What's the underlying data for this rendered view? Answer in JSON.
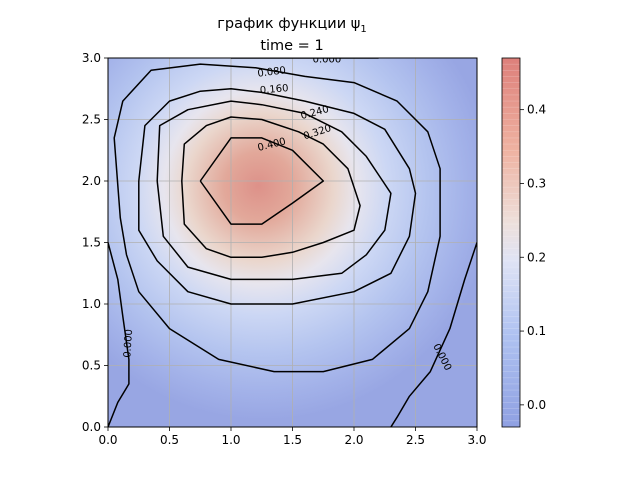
{
  "chart_data": {
    "type": "heatmap",
    "title_line1": "график функции ψ",
    "title_subscript": "1",
    "title_line2": "time = 1",
    "xlabel": "",
    "ylabel": "",
    "xlim": [
      0,
      3
    ],
    "ylim": [
      0,
      3
    ],
    "x_ticks": [
      "0.0",
      "0.5",
      "1.0",
      "1.5",
      "2.0",
      "2.5",
      "3.0"
    ],
    "y_ticks": [
      "0.0",
      "0.5",
      "1.0",
      "1.5",
      "2.0",
      "2.5",
      "3.0"
    ],
    "grid": true,
    "colormap": "coolwarm",
    "colorbar": {
      "range": [
        -0.03,
        0.47
      ],
      "ticks": [
        "0.0",
        "0.1",
        "0.2",
        "0.3",
        "0.4"
      ]
    },
    "field_peak": {
      "x": 1.25,
      "y": 1.9,
      "value": 0.47
    },
    "contour_levels": [
      "0.000",
      "0.080",
      "0.160",
      "0.240",
      "0.320",
      "0.400"
    ],
    "contours": [
      {
        "level": "0.400",
        "points": [
          [
            0.75,
            2.0
          ],
          [
            1.0,
            2.35
          ],
          [
            1.25,
            2.35
          ],
          [
            1.5,
            2.25
          ],
          [
            1.75,
            2.0
          ],
          [
            1.5,
            1.82
          ],
          [
            1.25,
            1.65
          ],
          [
            1.0,
            1.65
          ],
          [
            0.75,
            2.0
          ]
        ]
      },
      {
        "level": "0.320",
        "points": [
          [
            0.6,
            2.0
          ],
          [
            0.62,
            2.3
          ],
          [
            0.8,
            2.45
          ],
          [
            1.0,
            2.52
          ],
          [
            1.25,
            2.5
          ],
          [
            1.55,
            2.4
          ],
          [
            1.75,
            2.3
          ],
          [
            1.95,
            2.1
          ],
          [
            2.05,
            1.8
          ],
          [
            2.0,
            1.6
          ],
          [
            1.75,
            1.5
          ],
          [
            1.5,
            1.42
          ],
          [
            1.25,
            1.38
          ],
          [
            1.0,
            1.38
          ],
          [
            0.8,
            1.45
          ],
          [
            0.62,
            1.65
          ],
          [
            0.6,
            2.0
          ]
        ]
      },
      {
        "level": "0.240",
        "points": [
          [
            0.4,
            2.0
          ],
          [
            0.42,
            2.45
          ],
          [
            0.65,
            2.58
          ],
          [
            1.0,
            2.65
          ],
          [
            1.25,
            2.62
          ],
          [
            1.6,
            2.55
          ],
          [
            1.9,
            2.4
          ],
          [
            2.1,
            2.2
          ],
          [
            2.3,
            1.9
          ],
          [
            2.25,
            1.6
          ],
          [
            2.1,
            1.4
          ],
          [
            1.9,
            1.25
          ],
          [
            1.5,
            1.2
          ],
          [
            1.0,
            1.2
          ],
          [
            0.65,
            1.3
          ],
          [
            0.45,
            1.55
          ],
          [
            0.4,
            2.0
          ]
        ]
      },
      {
        "level": "0.160",
        "points": [
          [
            0.25,
            2.0
          ],
          [
            0.3,
            2.45
          ],
          [
            0.5,
            2.65
          ],
          [
            0.75,
            2.73
          ],
          [
            1.0,
            2.75
          ],
          [
            1.25,
            2.72
          ],
          [
            1.6,
            2.65
          ],
          [
            2.0,
            2.55
          ],
          [
            2.25,
            2.42
          ],
          [
            2.45,
            2.1
          ],
          [
            2.5,
            1.9
          ],
          [
            2.45,
            1.55
          ],
          [
            2.3,
            1.25
          ],
          [
            2.0,
            1.1
          ],
          [
            1.5,
            1.0
          ],
          [
            1.0,
            1.0
          ],
          [
            0.65,
            1.1
          ],
          [
            0.4,
            1.35
          ],
          [
            0.25,
            1.6
          ],
          [
            0.25,
            2.0
          ]
        ]
      },
      {
        "level": "0.080",
        "points": [
          [
            0.1,
            1.7
          ],
          [
            0.05,
            2.35
          ],
          [
            0.12,
            2.65
          ],
          [
            0.35,
            2.9
          ],
          [
            0.75,
            2.95
          ],
          [
            1.2,
            2.92
          ],
          [
            1.6,
            2.85
          ],
          [
            2.0,
            2.8
          ],
          [
            2.35,
            2.65
          ],
          [
            2.6,
            2.4
          ],
          [
            2.7,
            2.1
          ],
          [
            2.7,
            1.55
          ],
          [
            2.6,
            1.1
          ],
          [
            2.45,
            0.8
          ],
          [
            2.15,
            0.55
          ],
          [
            1.75,
            0.45
          ],
          [
            1.35,
            0.45
          ],
          [
            0.9,
            0.55
          ],
          [
            0.5,
            0.8
          ],
          [
            0.25,
            1.1
          ],
          [
            0.15,
            1.4
          ],
          [
            0.1,
            1.7
          ]
        ]
      },
      {
        "level": "0.000",
        "points": [
          [
            1.0,
            3.0
          ],
          [
            2.2,
            3.0
          ]
        ]
      },
      {
        "level": "0.000",
        "points": [
          [
            0.0,
            1.5
          ],
          [
            0.08,
            1.2
          ],
          [
            0.12,
            0.9
          ],
          [
            0.17,
            0.55
          ],
          [
            0.17,
            0.35
          ],
          [
            0.08,
            0.2
          ],
          [
            0.0,
            0.0
          ]
        ]
      },
      {
        "level": "0.000",
        "points": [
          [
            3.0,
            1.5
          ],
          [
            2.9,
            1.2
          ],
          [
            2.78,
            0.8
          ],
          [
            2.62,
            0.45
          ],
          [
            2.45,
            0.25
          ],
          [
            2.35,
            0.08
          ],
          [
            2.3,
            0.0
          ]
        ]
      }
    ],
    "contour_labels": [
      {
        "text": "0.000",
        "x": 1.78,
        "y": 2.99,
        "angle": 0
      },
      {
        "text": "0.080",
        "x": 1.33,
        "y": 2.89,
        "angle": 7
      },
      {
        "text": "0.160",
        "x": 1.35,
        "y": 2.75,
        "angle": 5
      },
      {
        "text": "0.240",
        "x": 1.68,
        "y": 2.56,
        "angle": 15
      },
      {
        "text": "0.320",
        "x": 1.7,
        "y": 2.4,
        "angle": 18
      },
      {
        "text": "0.400",
        "x": 1.33,
        "y": 2.3,
        "angle": 14
      },
      {
        "text": "0.000",
        "x": 0.16,
        "y": 0.68,
        "angle": 86
      },
      {
        "text": "0.000",
        "x": 2.72,
        "y": 0.57,
        "angle": -63
      }
    ]
  }
}
